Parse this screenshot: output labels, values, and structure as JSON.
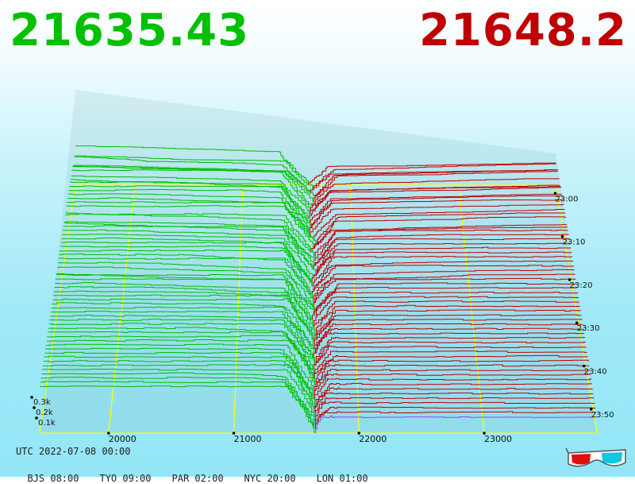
{
  "header": {
    "bid_price": "21635.43",
    "ask_price": "21648.2"
  },
  "footer": {
    "utc": "UTC 2022-07-08 00:00",
    "zones": [
      "BJS 08:00",
      "TYO 09:00",
      "PAR 02:00",
      "NYC 20:00",
      "LON 01:00"
    ]
  },
  "glasses_icon": "3d-glasses-icon",
  "colors": {
    "bid": "#00c000",
    "ask": "#c00000",
    "grid": "#ffff00",
    "latest_ask": "#a040ff"
  },
  "chart_data": {
    "type": "line",
    "title": "",
    "x_ticks": [
      20000,
      21000,
      22000,
      23000
    ],
    "x_tick_labels": [
      "20000",
      "21000",
      "22000",
      "23000"
    ],
    "xlim": [
      19450,
      23900
    ],
    "depth_ticks": [
      "0.1k",
      "0.2k",
      "0.3k"
    ],
    "time_ticks": [
      "23:00",
      "23:10",
      "23:20",
      "23:30",
      "23:40",
      "23:50"
    ],
    "snapshots": 60,
    "mid_price": 21641.8,
    "bid_side_max_depth": 0.37,
    "ask_side_max_depth": 0.31,
    "series": [
      {
        "name": "bid"
      },
      {
        "name": "ask"
      }
    ]
  }
}
